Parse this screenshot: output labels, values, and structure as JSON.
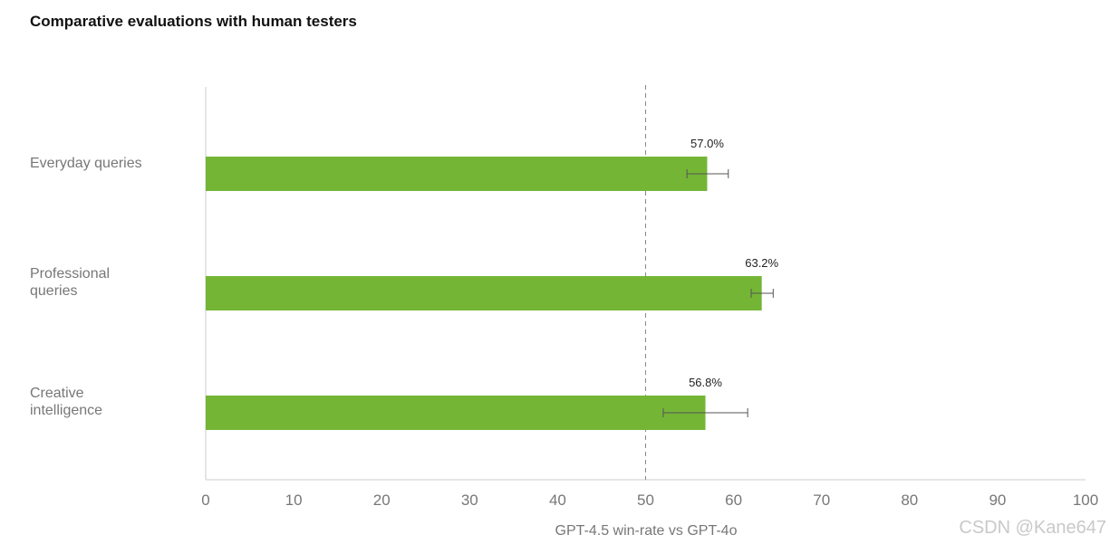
{
  "chart_data": {
    "type": "bar",
    "orientation": "horizontal",
    "title": "Comparative evaluations with human testers",
    "xlabel": "GPT-4.5 win-rate vs GPT-4o",
    "ylabel": "",
    "xlim": [
      0,
      100
    ],
    "x_ticks": [
      "0",
      "10",
      "20",
      "30",
      "40",
      "50",
      "60",
      "70",
      "80",
      "90",
      "100"
    ],
    "reference_line": {
      "x": 50,
      "style": "dashed"
    },
    "categories": [
      {
        "lines": [
          "Everyday queries"
        ]
      },
      {
        "lines": [
          "Professional",
          "queries"
        ]
      },
      {
        "lines": [
          "Creative",
          "intelligence"
        ]
      }
    ],
    "values": [
      57.0,
      63.2,
      56.8
    ],
    "value_labels": [
      "57.0%",
      "63.2%",
      "56.8%"
    ],
    "error_bars": [
      {
        "low": 54.7,
        "high": 59.4
      },
      {
        "low": 62.0,
        "high": 64.5
      },
      {
        "low": 52.0,
        "high": 61.6
      }
    ],
    "bar_color": "#74b536",
    "grid": false,
    "legend": "none"
  },
  "watermark": "CSDN @Kane647"
}
